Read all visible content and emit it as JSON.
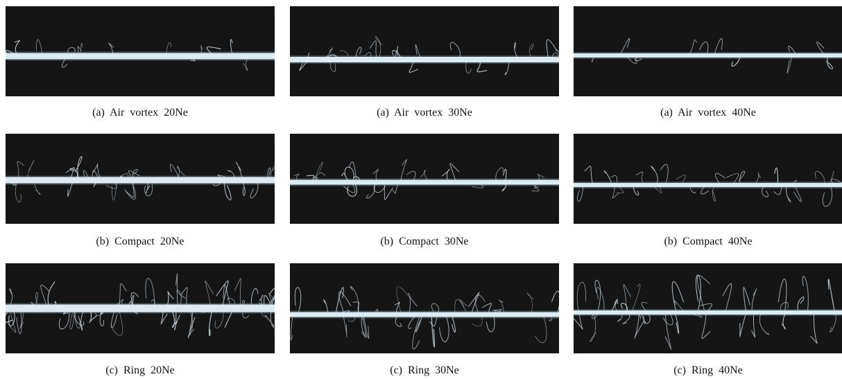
{
  "figure": {
    "panels": [
      {
        "caption": "(a)  Air  vortex  20Ne"
      },
      {
        "caption": "(a)  Air  vortex  30Ne"
      },
      {
        "caption": "(a)  Air  vortex  40Ne"
      },
      {
        "caption": "(b)  Compact  20Ne"
      },
      {
        "caption": "(b)  Compact  30Ne"
      },
      {
        "caption": "(b)  Compact  40Ne"
      },
      {
        "caption": "(c)  Ring  20Ne"
      },
      {
        "caption": "(c)  Ring  30Ne"
      },
      {
        "caption": "(c)  Ring  40Ne"
      }
    ]
  }
}
